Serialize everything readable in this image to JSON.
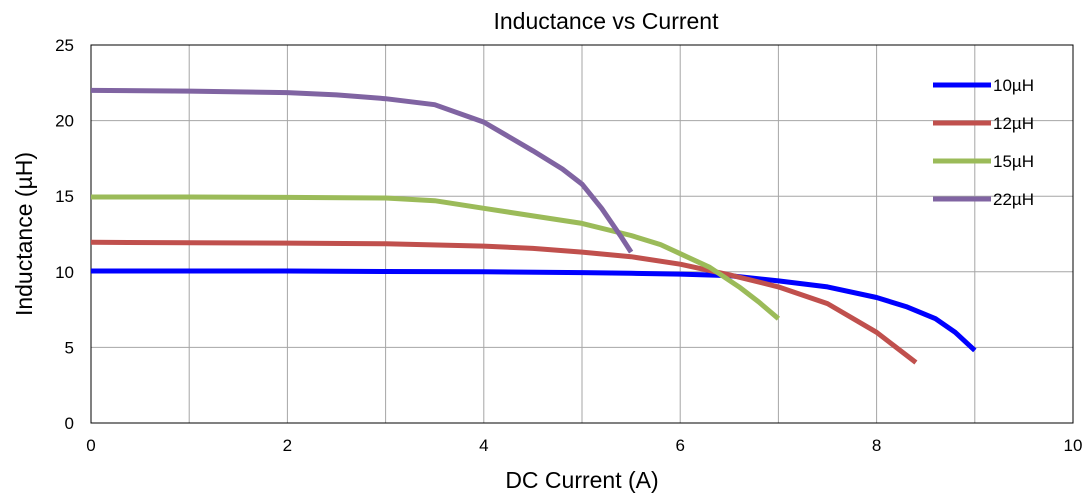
{
  "chart_data": {
    "type": "line",
    "title": "Inductance vs Current",
    "xlabel": "DC Current (A)",
    "ylabel": "Inductance (µH)",
    "xlim": [
      0,
      10
    ],
    "ylim": [
      0,
      25
    ],
    "xticks": [
      0,
      2,
      4,
      6,
      8,
      10
    ],
    "yticks": [
      0,
      5,
      10,
      15,
      20,
      25
    ],
    "grid": true,
    "legend_position": "top-right",
    "series": [
      {
        "name": "10µH",
        "color": "#0000ff",
        "x": [
          0,
          1,
          2,
          3,
          4,
          5,
          5.5,
          6,
          6.5,
          7,
          7.5,
          8,
          8.3,
          8.6,
          8.8,
          9.0
        ],
        "y": [
          10.05,
          10.05,
          10.05,
          10.02,
          10.0,
          9.95,
          9.9,
          9.85,
          9.75,
          9.4,
          9.0,
          8.3,
          7.7,
          6.9,
          6.0,
          4.8
        ]
      },
      {
        "name": "12µH",
        "color": "#c0504d",
        "x": [
          0,
          1,
          2,
          3,
          4,
          4.5,
          5,
          5.5,
          6,
          6.5,
          7,
          7.5,
          8,
          8.2,
          8.4
        ],
        "y": [
          11.95,
          11.92,
          11.9,
          11.85,
          11.7,
          11.55,
          11.3,
          11.0,
          10.5,
          9.8,
          9.0,
          7.9,
          6.0,
          5.0,
          4.0
        ]
      },
      {
        "name": "15µH",
        "color": "#9bbb59",
        "x": [
          0,
          1,
          2,
          3,
          3.5,
          4,
          4.5,
          5,
          5.5,
          5.8,
          6,
          6.3,
          6.6,
          6.8,
          7.0
        ],
        "y": [
          14.95,
          14.95,
          14.92,
          14.88,
          14.7,
          14.2,
          13.7,
          13.2,
          12.4,
          11.8,
          11.2,
          10.3,
          9.0,
          8.0,
          6.9
        ]
      },
      {
        "name": "22µH",
        "color": "#8064a2",
        "x": [
          0,
          1,
          2,
          2.5,
          3,
          3.5,
          4,
          4.5,
          4.8,
          5.0,
          5.2,
          5.4,
          5.5
        ],
        "y": [
          22.0,
          21.95,
          21.85,
          21.7,
          21.45,
          21.05,
          19.9,
          18.0,
          16.8,
          15.8,
          14.2,
          12.3,
          11.3
        ]
      }
    ]
  }
}
